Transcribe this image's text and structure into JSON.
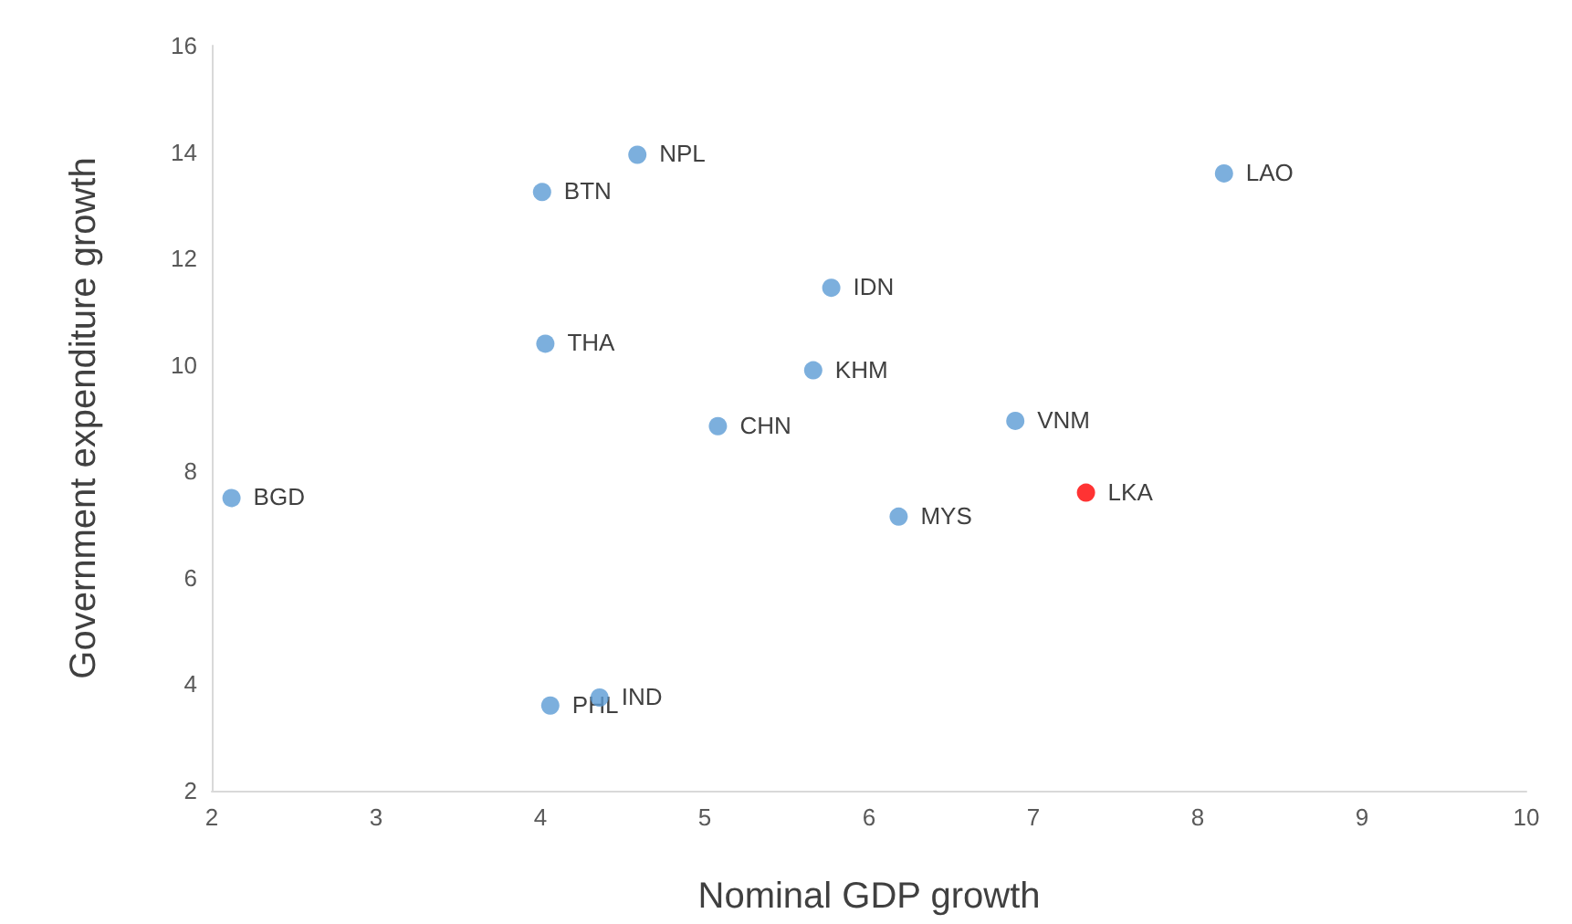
{
  "chart_data": {
    "type": "scatter",
    "xlabel": "Nominal GDP growth",
    "ylabel": "Government expenditure growth",
    "x": [
      2.12,
      4.01,
      4.59,
      4.03,
      4.06,
      4.36,
      5.08,
      5.66,
      5.77,
      6.18,
      6.89,
      7.32,
      8.16
    ],
    "values": [
      7.5,
      13.25,
      13.95,
      10.4,
      3.6,
      3.75,
      8.85,
      9.9,
      11.45,
      7.15,
      8.95,
      7.6,
      13.6
    ],
    "colors": [
      "#5b9bd5",
      "#5b9bd5",
      "#5b9bd5",
      "#5b9bd5",
      "#5b9bd5",
      "#5b9bd5",
      "#5b9bd5",
      "#5b9bd5",
      "#5b9bd5",
      "#5b9bd5",
      "#5b9bd5",
      "#ff0000",
      "#5b9bd5"
    ],
    "xlim": [
      2,
      10
    ],
    "xticks": [
      2,
      3,
      4,
      5,
      6,
      7,
      8,
      9,
      10
    ],
    "ylim": [
      2,
      16
    ],
    "yticks": [
      2,
      4,
      6,
      8,
      10,
      12,
      14,
      16
    ],
    "marker": "circle",
    "annotations": [
      {
        "text": "BGD",
        "x": 2.12,
        "y": 7.5
      },
      {
        "text": "BTN",
        "x": 4.01,
        "y": 13.25
      },
      {
        "text": "NPL",
        "x": 4.59,
        "y": 13.95
      },
      {
        "text": "THA",
        "x": 4.03,
        "y": 10.4
      },
      {
        "text": "PHL",
        "x": 4.06,
        "y": 3.6
      },
      {
        "text": "IND",
        "x": 4.36,
        "y": 3.75
      },
      {
        "text": "CHN",
        "x": 5.08,
        "y": 8.85
      },
      {
        "text": "KHM",
        "x": 5.66,
        "y": 9.9
      },
      {
        "text": "IDN",
        "x": 5.77,
        "y": 11.45
      },
      {
        "text": "MYS",
        "x": 6.18,
        "y": 7.15
      },
      {
        "text": "VNM",
        "x": 6.89,
        "y": 8.95
      },
      {
        "text": "LKA",
        "x": 7.32,
        "y": 7.6
      },
      {
        "text": "LAO",
        "x": 8.16,
        "y": 13.6
      }
    ]
  }
}
